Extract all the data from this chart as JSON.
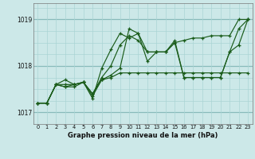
{
  "xlabel": "Graphe pression niveau de la mer (hPa)",
  "background_color": "#cce8e8",
  "grid_color_minor": "#aad4d4",
  "grid_color_major": "#88bbbb",
  "line_color": "#1a5c1a",
  "ylim": [
    1016.75,
    1019.35
  ],
  "xlim": [
    -0.5,
    23.5
  ],
  "yticks": [
    1017,
    1018,
    1019
  ],
  "ygrid_lines": [
    1016.75,
    1017.0,
    1017.25,
    1017.5,
    1017.75,
    1018.0,
    1018.25,
    1018.5,
    1018.75,
    1019.0,
    1019.25
  ],
  "xticks": [
    0,
    1,
    2,
    3,
    4,
    5,
    6,
    7,
    8,
    9,
    10,
    11,
    12,
    13,
    14,
    15,
    16,
    17,
    18,
    19,
    20,
    21,
    22,
    23
  ],
  "series": [
    {
      "x": [
        0,
        1,
        2,
        3,
        4,
        5,
        6,
        7,
        8,
        9,
        10,
        11,
        12,
        13,
        14,
        15,
        16,
        17,
        18,
        19,
        20,
        21,
        22,
        23
      ],
      "y": [
        1017.2,
        1017.2,
        1017.6,
        1017.55,
        1017.6,
        1017.65,
        1017.4,
        1017.75,
        1018.0,
        1018.45,
        1018.65,
        1018.55,
        1018.3,
        1018.3,
        1018.3,
        1018.5,
        1017.75,
        1017.75,
        1017.75,
        1017.75,
        1017.75,
        1018.3,
        1018.8,
        1019.0
      ]
    },
    {
      "x": [
        0,
        1,
        2,
        3,
        4,
        5,
        6,
        7,
        8,
        9,
        10,
        11,
        12,
        13,
        14,
        15,
        16,
        17,
        18,
        19,
        20,
        21,
        22,
        23
      ],
      "y": [
        1017.2,
        1017.2,
        1017.6,
        1017.7,
        1017.6,
        1017.65,
        1017.35,
        1017.7,
        1017.8,
        1017.95,
        1018.8,
        1018.7,
        1018.3,
        1018.3,
        1018.3,
        1018.55,
        1017.75,
        1017.75,
        1017.75,
        1017.75,
        1017.75,
        1018.3,
        1018.45,
        1019.0
      ]
    },
    {
      "x": [
        0,
        1,
        2,
        3,
        4,
        5,
        6,
        7,
        8,
        9,
        10,
        11,
        12,
        13,
        14,
        15,
        16,
        17,
        18,
        19,
        20,
        21,
        22,
        23
      ],
      "y": [
        1017.2,
        1017.2,
        1017.6,
        1017.55,
        1017.55,
        1017.65,
        1017.3,
        1017.95,
        1018.35,
        1018.7,
        1018.6,
        1018.7,
        1018.1,
        1018.3,
        1018.3,
        1018.5,
        1018.55,
        1018.6,
        1018.6,
        1018.65,
        1018.65,
        1018.65,
        1019.0,
        1019.0
      ]
    },
    {
      "x": [
        0,
        1,
        2,
        3,
        4,
        5,
        6,
        7,
        8,
        9,
        10,
        11,
        12,
        13,
        14,
        15,
        16,
        17,
        18,
        19,
        20,
        21,
        22,
        23
      ],
      "y": [
        1017.2,
        1017.2,
        1017.6,
        1017.6,
        1017.6,
        1017.65,
        1017.4,
        1017.7,
        1017.75,
        1017.85,
        1017.85,
        1017.85,
        1017.85,
        1017.85,
        1017.85,
        1017.85,
        1017.85,
        1017.85,
        1017.85,
        1017.85,
        1017.85,
        1017.85,
        1017.85,
        1017.85
      ]
    }
  ]
}
